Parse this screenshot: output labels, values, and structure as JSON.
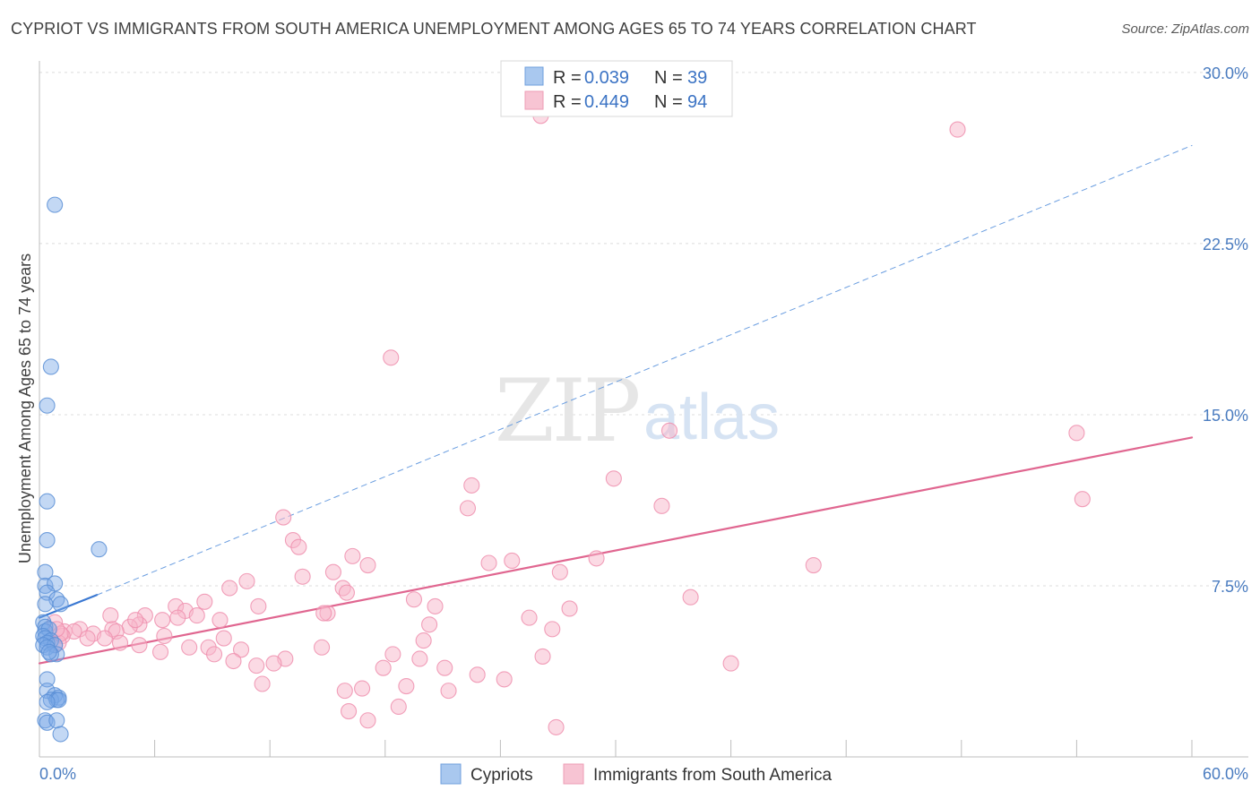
{
  "title": "CYPRIOT VS IMMIGRANTS FROM SOUTH AMERICA UNEMPLOYMENT AMONG AGES 65 TO 74 YEARS CORRELATION CHART",
  "source": "Source: ZipAtlas.com",
  "watermark": {
    "zip": "ZIP",
    "atlas": "atlas"
  },
  "legend": {
    "r_label": "R =",
    "n_label": "N =",
    "entries": [
      {
        "name": "Cypriots",
        "r": "0.039",
        "n": "39",
        "color": "#a9c8ef"
      },
      {
        "name": "Immigrants from South America",
        "r": "0.449",
        "n": "94",
        "color": "#f7b6c9"
      }
    ]
  },
  "chart_data": {
    "type": "scatter",
    "title": "CYPRIOT VS IMMIGRANTS FROM SOUTH AMERICA UNEMPLOYMENT AMONG AGES 65 TO 74 YEARS CORRELATION CHART",
    "xlabel": "",
    "ylabel": "Unemployment Among Ages 65 to 74 years",
    "xlim": [
      0,
      60
    ],
    "ylim": [
      0,
      30.5
    ],
    "x_tick_labels": [
      "0.0%",
      "60.0%"
    ],
    "y_ticks": [
      7.5,
      15.0,
      22.5,
      30.0
    ],
    "y_tick_labels": [
      "7.5%",
      "15.0%",
      "22.5%",
      "30.0%"
    ],
    "grid": true,
    "legend_position": "top-center",
    "series": [
      {
        "name": "Cypriots",
        "color": "#7aa8e6",
        "stroke": "#5a8fd6",
        "points": [
          [
            0.8,
            24.2
          ],
          [
            0.6,
            17.1
          ],
          [
            0.4,
            15.4
          ],
          [
            0.4,
            11.2
          ],
          [
            0.4,
            9.5
          ],
          [
            3.1,
            9.1
          ],
          [
            0.3,
            8.1
          ],
          [
            0.3,
            7.5
          ],
          [
            0.8,
            7.6
          ],
          [
            0.4,
            7.2
          ],
          [
            0.9,
            6.9
          ],
          [
            0.3,
            6.7
          ],
          [
            1.1,
            6.7
          ],
          [
            0.2,
            5.9
          ],
          [
            0.3,
            5.7
          ],
          [
            0.3,
            5.5
          ],
          [
            0.5,
            5.6
          ],
          [
            0.2,
            5.3
          ],
          [
            0.3,
            5.2
          ],
          [
            0.6,
            5.1
          ],
          [
            0.4,
            5.0
          ],
          [
            0.2,
            4.9
          ],
          [
            0.8,
            4.9
          ],
          [
            0.4,
            4.8
          ],
          [
            0.9,
            4.5
          ],
          [
            0.6,
            4.5
          ],
          [
            0.4,
            3.4
          ],
          [
            0.4,
            2.9
          ],
          [
            0.8,
            2.7
          ],
          [
            1.0,
            2.6
          ],
          [
            0.6,
            2.5
          ],
          [
            0.9,
            2.5
          ],
          [
            1.0,
            2.5
          ],
          [
            0.4,
            2.4
          ],
          [
            0.3,
            1.6
          ],
          [
            0.4,
            1.5
          ],
          [
            0.9,
            1.6
          ],
          [
            1.1,
            1.0
          ],
          [
            0.5,
            4.6
          ]
        ]
      },
      {
        "name": "Immigrants from South America",
        "color": "#f7b6c9",
        "stroke": "#ee8fae",
        "points": [
          [
            26.1,
            28.1
          ],
          [
            47.8,
            27.5
          ],
          [
            18.3,
            17.5
          ],
          [
            32.8,
            14.3
          ],
          [
            54.0,
            14.2
          ],
          [
            29.9,
            12.2
          ],
          [
            22.5,
            11.9
          ],
          [
            54.3,
            11.3
          ],
          [
            32.4,
            11.0
          ],
          [
            22.3,
            10.9
          ],
          [
            12.7,
            10.5
          ],
          [
            13.2,
            9.5
          ],
          [
            13.5,
            9.2
          ],
          [
            16.3,
            8.8
          ],
          [
            23.4,
            8.5
          ],
          [
            24.6,
            8.6
          ],
          [
            29.0,
            8.7
          ],
          [
            17.1,
            8.4
          ],
          [
            40.3,
            8.4
          ],
          [
            27.1,
            8.1
          ],
          [
            15.3,
            8.1
          ],
          [
            13.7,
            7.9
          ],
          [
            10.8,
            7.7
          ],
          [
            9.9,
            7.4
          ],
          [
            15.8,
            7.4
          ],
          [
            16.0,
            7.2
          ],
          [
            33.9,
            7.0
          ],
          [
            19.5,
            6.9
          ],
          [
            8.6,
            6.8
          ],
          [
            11.4,
            6.6
          ],
          [
            20.6,
            6.6
          ],
          [
            7.1,
            6.6
          ],
          [
            27.6,
            6.5
          ],
          [
            15.0,
            6.3
          ],
          [
            14.8,
            6.3
          ],
          [
            3.7,
            6.2
          ],
          [
            5.5,
            6.2
          ],
          [
            7.6,
            6.4
          ],
          [
            8.2,
            6.2
          ],
          [
            25.5,
            6.1
          ],
          [
            6.4,
            6.0
          ],
          [
            9.4,
            6.0
          ],
          [
            7.2,
            6.1
          ],
          [
            5.2,
            5.8
          ],
          [
            20.3,
            5.8
          ],
          [
            2.1,
            5.6
          ],
          [
            3.8,
            5.6
          ],
          [
            4.7,
            5.7
          ],
          [
            0.8,
            5.9
          ],
          [
            1.3,
            5.5
          ],
          [
            1.8,
            5.5
          ],
          [
            2.8,
            5.4
          ],
          [
            4.0,
            5.5
          ],
          [
            6.5,
            5.3
          ],
          [
            1.2,
            5.3
          ],
          [
            9.6,
            5.2
          ],
          [
            2.5,
            5.2
          ],
          [
            26.7,
            5.6
          ],
          [
            20.0,
            5.1
          ],
          [
            1.0,
            5.0
          ],
          [
            4.2,
            5.0
          ],
          [
            0.8,
            4.9
          ],
          [
            5.2,
            4.9
          ],
          [
            7.8,
            4.8
          ],
          [
            8.8,
            4.8
          ],
          [
            14.7,
            4.8
          ],
          [
            10.5,
            4.7
          ],
          [
            9.1,
            4.5
          ],
          [
            18.4,
            4.5
          ],
          [
            6.3,
            4.6
          ],
          [
            12.8,
            4.3
          ],
          [
            10.1,
            4.2
          ],
          [
            19.8,
            4.3
          ],
          [
            26.2,
            4.4
          ],
          [
            11.3,
            4.0
          ],
          [
            12.2,
            4.1
          ],
          [
            36.0,
            4.1
          ],
          [
            17.9,
            3.9
          ],
          [
            21.1,
            3.9
          ],
          [
            22.8,
            3.6
          ],
          [
            24.2,
            3.4
          ],
          [
            11.6,
            3.2
          ],
          [
            19.1,
            3.1
          ],
          [
            16.8,
            3.0
          ],
          [
            21.3,
            2.9
          ],
          [
            15.9,
            2.9
          ],
          [
            18.7,
            2.2
          ],
          [
            16.1,
            2.0
          ],
          [
            17.1,
            1.6
          ],
          [
            26.9,
            1.3
          ],
          [
            1.1,
            5.4
          ],
          [
            3.4,
            5.2
          ],
          [
            0.9,
            5.6
          ],
          [
            5.0,
            6.0
          ]
        ]
      }
    ],
    "trend_lines": [
      {
        "series": "Cypriots",
        "style": "solid",
        "x": [
          0,
          3.0
        ],
        "y": [
          6.1,
          7.1
        ]
      },
      {
        "series": "Cypriots",
        "style": "dashed",
        "x": [
          3.0,
          60
        ],
        "y": [
          7.1,
          26.8
        ]
      },
      {
        "series": "Immigrants from South America",
        "style": "solid",
        "x": [
          0,
          60
        ],
        "y": [
          4.1,
          14.0
        ]
      }
    ]
  }
}
